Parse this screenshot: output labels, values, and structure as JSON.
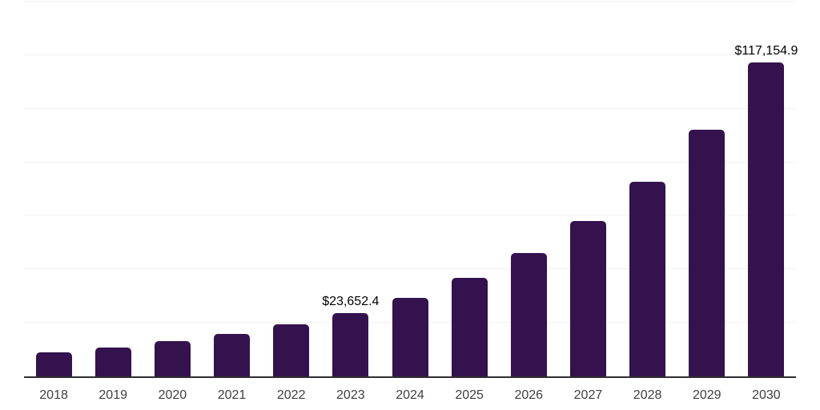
{
  "chart_data": {
    "type": "bar",
    "title": "",
    "xlabel": "",
    "ylabel": "",
    "categories": [
      "2018",
      "2019",
      "2020",
      "2021",
      "2022",
      "2023",
      "2024",
      "2025",
      "2026",
      "2027",
      "2028",
      "2029",
      "2030"
    ],
    "values": [
      9100,
      10900,
      13200,
      15900,
      19500,
      23652.4,
      29300,
      36800,
      46000,
      57900,
      72800,
      92100,
      117154.9
    ],
    "data_labels": {
      "2023": "$23,652.4",
      "2030": "$117,154.9"
    },
    "ylim": [
      0,
      140000
    ],
    "gridline_interval": 20000,
    "grid": "horizontal",
    "legend": "none",
    "colors": {
      "bar": "#34124e",
      "axis_line": "#2e2e2e",
      "gridline": "#f1f1f3",
      "x_tick_text": "#3f3f3f",
      "data_label_text": "#000000",
      "background": "#ffffff"
    }
  }
}
